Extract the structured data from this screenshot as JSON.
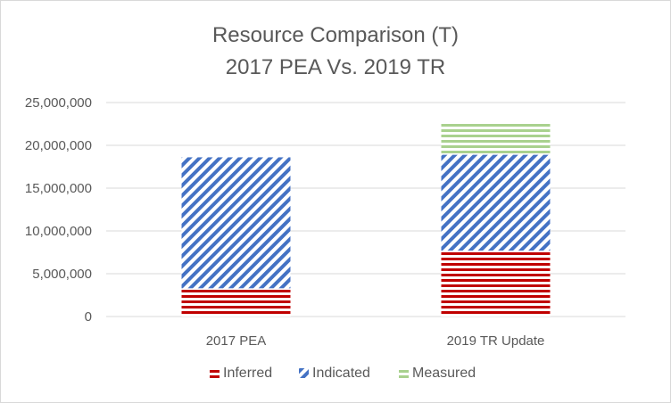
{
  "chart_data": {
    "type": "bar",
    "stacked": true,
    "title": [
      "Resource Comparison (T)",
      "2017 PEA Vs. 2019 TR"
    ],
    "categories": [
      "2017 PEA",
      "2019 TR Update"
    ],
    "series": [
      {
        "name": "Inferred",
        "values": [
          3300000,
          7700000
        ],
        "color": "#C00000",
        "pattern": "horizontal-lines"
      },
      {
        "name": "Indicated",
        "values": [
          15300000,
          11200000
        ],
        "color": "#4472C4",
        "pattern": "diagonal-stripes"
      },
      {
        "name": "Measured",
        "values": [
          0,
          3700000
        ],
        "color": "#A9D18E",
        "pattern": "horizontal-lines"
      }
    ],
    "ylim": [
      0,
      25000000
    ],
    "yticks": [
      "0",
      "5,000,000",
      "10,000,000",
      "15,000,000",
      "20,000,000",
      "25,000,000"
    ],
    "ytick_values": [
      0,
      5000000,
      10000000,
      15000000,
      20000000,
      25000000
    ],
    "grid": true,
    "legend": "bottom"
  }
}
